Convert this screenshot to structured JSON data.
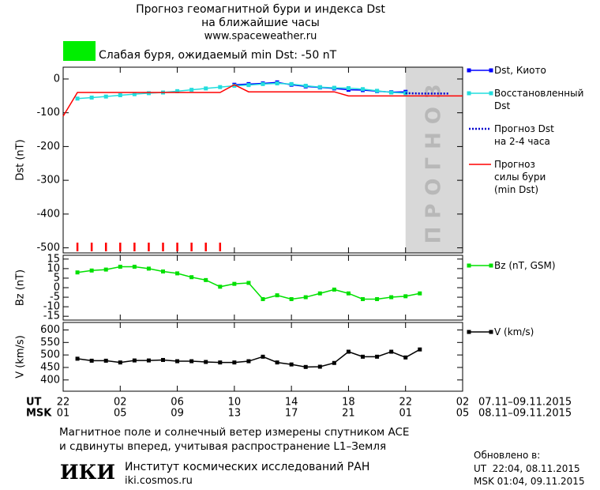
{
  "header": {
    "title": [
      "Прогноз геомагнитной бури и индекса Dst",
      "на ближайшие часы"
    ],
    "url": "www.spaceweather.ru",
    "storm_level": {
      "color": "#00ee00",
      "text": "Слабая буря, ожидаемый min Dst: -50 nT"
    }
  },
  "chart_data": [
    {
      "type": "line",
      "ylabel": "Dst (nT)",
      "xlim": [
        0,
        28
      ],
      "ylim": [
        -515,
        35
      ],
      "yticks": [
        0,
        -100,
        -200,
        -300,
        -400,
        -500
      ],
      "forecast_region": [
        24,
        28
      ],
      "forecast_label": "ПРОГНОЗ",
      "storm_marks": [
        1,
        2,
        3,
        4,
        5,
        6,
        7,
        8,
        9,
        10,
        11
      ],
      "storm_mark_color": "#ff0000",
      "series": [
        {
          "name": "Dst, Киото",
          "color": "#0000ff",
          "marker": "square",
          "style": "solid",
          "x": [
            12,
            13,
            14,
            15,
            16,
            17,
            18,
            19,
            20,
            21,
            22,
            23,
            24
          ],
          "values": [
            -17,
            -15,
            -13,
            -10,
            -17,
            -22,
            -25,
            -28,
            -32,
            -33,
            -36,
            -39,
            -38
          ]
        },
        {
          "name": "Восстановленный\nDst",
          "color": "#22dddd",
          "marker": "square",
          "style": "solid",
          "x": [
            1,
            2,
            3,
            4,
            5,
            6,
            7,
            8,
            9,
            10,
            11,
            12,
            13,
            14,
            15,
            16,
            17,
            18,
            19,
            20,
            21,
            22,
            23,
            24
          ],
          "values": [
            -58,
            -55,
            -52,
            -48,
            -45,
            -42,
            -40,
            -36,
            -32,
            -28,
            -24,
            -20,
            -18,
            -15,
            -13,
            -15,
            -20,
            -24,
            -26,
            -27,
            -30,
            -35,
            -40,
            -42
          ]
        },
        {
          "name": "Прогноз Dst\nна 2-4 часа",
          "color": "#0000cc",
          "marker": "none",
          "style": "dotted",
          "x": [
            24,
            25,
            26,
            27
          ],
          "values": [
            -42,
            -43,
            -43,
            -43
          ]
        },
        {
          "name": "Прогноз\nсилы бури\n(min Dst)",
          "color": "#ff0000",
          "marker": "none",
          "style": "solid",
          "x": [
            0,
            1,
            11,
            12,
            13,
            19,
            20,
            28
          ],
          "values": [
            -110,
            -40,
            -40,
            -17,
            -38,
            -38,
            -50,
            -50
          ]
        }
      ]
    },
    {
      "type": "line",
      "ylabel": "Bz (nT)",
      "xlim": [
        0,
        28
      ],
      "ylim": [
        -17,
        17
      ],
      "yticks": [
        15,
        10,
        5,
        0,
        -5,
        -10,
        -15
      ],
      "series": [
        {
          "name": "Bz (nT, GSM)",
          "color": "#00e000",
          "marker": "square",
          "style": "solid",
          "x": [
            1,
            2,
            3,
            4,
            5,
            6,
            7,
            8,
            9,
            10,
            11,
            12,
            13,
            14,
            15,
            16,
            17,
            18,
            19,
            20,
            21,
            22,
            23,
            24,
            25
          ],
          "values": [
            8,
            9,
            9.5,
            11,
            11,
            10,
            8.5,
            7.5,
            5.5,
            4,
            0.5,
            2,
            2.5,
            -6,
            -4,
            -6,
            -5,
            -3,
            -1,
            -3,
            -6,
            -6,
            -5,
            -4.5,
            -3
          ]
        }
      ]
    },
    {
      "type": "line",
      "ylabel": "V (km/s)",
      "xlim": [
        0,
        28
      ],
      "ylim": [
        355,
        630
      ],
      "yticks": [
        600,
        550,
        500,
        450,
        400
      ],
      "xticks": [
        {
          "value": 0,
          "label": "22"
        },
        {
          "value": 4,
          "label": "02"
        },
        {
          "value": 8,
          "label": "06"
        },
        {
          "value": 12,
          "label": "10"
        },
        {
          "value": 16,
          "label": "14"
        },
        {
          "value": 20,
          "label": "18"
        },
        {
          "value": 24,
          "label": "22"
        },
        {
          "value": 28,
          "label": "02"
        }
      ],
      "xticks_msk": [
        "01",
        "05",
        "09",
        "13",
        "17",
        "21",
        "01",
        "05"
      ],
      "axis_labels": [
        "UT",
        "MSK"
      ],
      "date_ranges": [
        "07.11–09.11.2015",
        "08.11–09.11.2015"
      ],
      "series": [
        {
          "name": "V (km/s)",
          "color": "#000000",
          "marker": "square",
          "style": "solid",
          "x": [
            1,
            2,
            3,
            4,
            5,
            6,
            7,
            8,
            9,
            10,
            11,
            12,
            13,
            14,
            15,
            16,
            17,
            18,
            19,
            20,
            21,
            22,
            23,
            24,
            25
          ],
          "values": [
            485,
            477,
            477,
            470,
            478,
            478,
            480,
            475,
            475,
            472,
            470,
            470,
            475,
            493,
            470,
            462,
            452,
            453,
            468,
            513,
            493,
            493,
            513,
            490,
            522
          ]
        }
      ]
    }
  ],
  "footer": {
    "note": [
      "Магнитное поле и солнечный ветер измерены спутником ACE",
      "и сдвинуты вперед, учитывая распространение L1–Земля"
    ],
    "logo": "ИКИ",
    "institute": "Институт космических исследований РАН",
    "site": "iki.cosmos.ru",
    "updated": {
      "label": "Обновлено в:",
      "ut": "UT  22:04, 08.11.2015",
      "msk": "MSK 01:04, 09.11.2015"
    }
  }
}
